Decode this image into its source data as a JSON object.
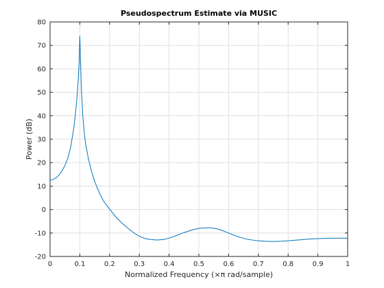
{
  "chart_data": {
    "type": "line",
    "title": "Pseudospectrum Estimate via MUSIC",
    "xlabel": "Normalized Frequency  (×π rad/sample)",
    "ylabel": "Power (dB)",
    "xlim": [
      0,
      1
    ],
    "ylim": [
      -20,
      80
    ],
    "xticks": [
      "0",
      "0.1",
      "0.2",
      "0.3",
      "0.4",
      "0.5",
      "0.6",
      "0.7",
      "0.8",
      "0.9",
      "1"
    ],
    "yticks": [
      "-20",
      "-10",
      "0",
      "10",
      "20",
      "30",
      "40",
      "50",
      "60",
      "70",
      "80"
    ],
    "grid": true,
    "line_color": "#0072bd",
    "series": [
      {
        "x": [
          0,
          0.01,
          0.02,
          0.03,
          0.04,
          0.05,
          0.06,
          0.07,
          0.08,
          0.085,
          0.09,
          0.095,
          0.098,
          0.1,
          0.102,
          0.105,
          0.11,
          0.115,
          0.12,
          0.13,
          0.14,
          0.15,
          0.16,
          0.17,
          0.18,
          0.19,
          0.2,
          0.22,
          0.24,
          0.26,
          0.28,
          0.3,
          0.32,
          0.34,
          0.36,
          0.38,
          0.4,
          0.42,
          0.44,
          0.46,
          0.48,
          0.5,
          0.52,
          0.54,
          0.56,
          0.58,
          0.6,
          0.62,
          0.64,
          0.66,
          0.68,
          0.7,
          0.72,
          0.74,
          0.76,
          0.78,
          0.8,
          0.82,
          0.84,
          0.86,
          0.88,
          0.9,
          0.92,
          0.94,
          0.96,
          0.98,
          1.0
        ],
        "y": [
          12.5,
          12.8,
          13.5,
          14.7,
          16.5,
          18.8,
          22.0,
          27.0,
          35.0,
          40.5,
          47.0,
          56.0,
          64.0,
          74.0,
          65.0,
          52.0,
          40.0,
          32.5,
          27.5,
          21.0,
          16.0,
          12.0,
          8.8,
          6.0,
          3.6,
          1.8,
          0.2,
          -3.0,
          -5.6,
          -7.8,
          -9.8,
          -11.4,
          -12.4,
          -12.8,
          -13.0,
          -12.8,
          -12.2,
          -11.3,
          -10.3,
          -9.4,
          -8.6,
          -8.0,
          -7.8,
          -7.8,
          -8.2,
          -9.0,
          -10.0,
          -11.0,
          -11.9,
          -12.6,
          -13.0,
          -13.3,
          -13.5,
          -13.6,
          -13.6,
          -13.5,
          -13.3,
          -13.1,
          -12.9,
          -12.7,
          -12.5,
          -12.4,
          -12.3,
          -12.2,
          -12.2,
          -12.2,
          -12.2
        ]
      }
    ]
  }
}
